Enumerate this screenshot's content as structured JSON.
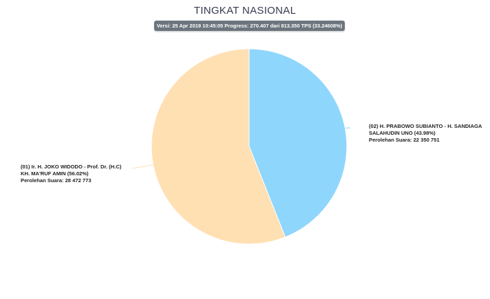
{
  "chart_data": {
    "type": "pie",
    "title": "TINGKAT NASIONAL",
    "subtitle": "Versi: 25 Apr 2019 10:45:05 Progress: 270.407 dari 813.350 TPS (33.24608%)",
    "slices": [
      {
        "value": 22350751,
        "percent": 43.98,
        "color": "#8fd6fc",
        "label_lines": [
          "(02) H. PRABOWO SUBIANTO - H. SANDIAGA",
          "SALAHUDIN UNO (43.98%)",
          "Perolehan Suara: 22 350 751"
        ]
      },
      {
        "value": 28472773,
        "percent": 56.02,
        "color": "#ffe0b3",
        "label_lines": [
          "(01) Ir. H. JOKO WIDODO - Prof. Dr. (H.C)",
          "KH. MA'RUF AMIN (56.02%)",
          "Perolehan Suara: 28 472 773"
        ]
      }
    ]
  }
}
